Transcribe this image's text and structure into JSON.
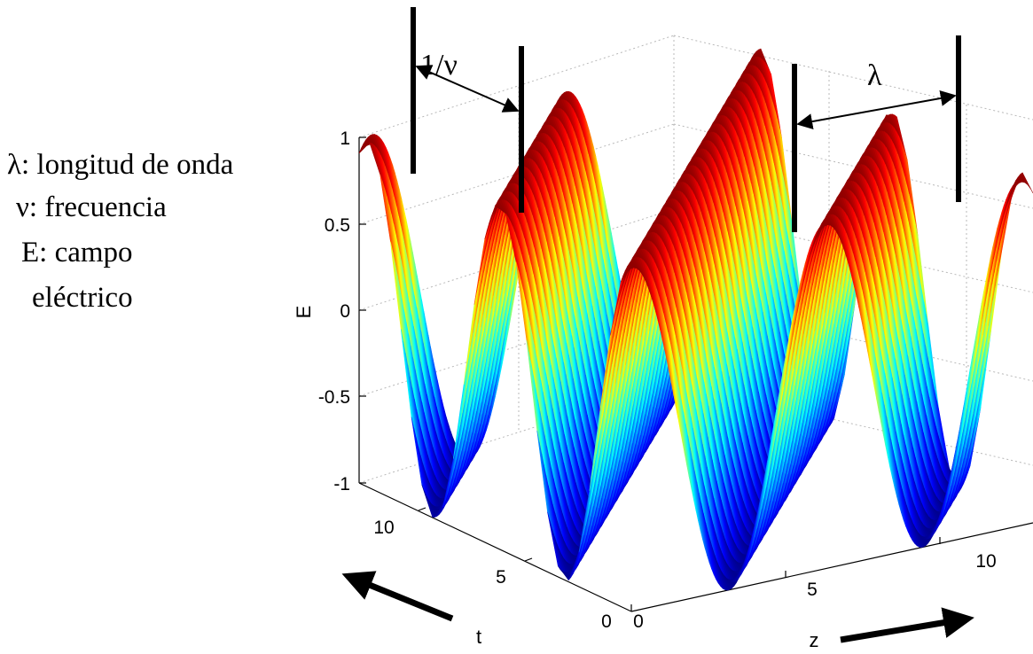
{
  "legend": {
    "lambda_line": "λ: longitud de onda",
    "nu_line": "ν: frecuencia",
    "e_line_1": "E: campo",
    "e_line_2": "eléctrico"
  },
  "dimensions": {
    "period_label": "1/ν",
    "wavelength_label": "λ"
  },
  "chart_data": {
    "type": "surface",
    "function": "E = cos(z - t)",
    "colormap": "jet",
    "zlabel": "E",
    "xlabel": "z",
    "ylabel": "t",
    "z_range": [
      0,
      13
    ],
    "t_range": [
      0,
      13
    ],
    "E_range": [
      -1,
      1
    ],
    "e_ticks": [
      "-1",
      "-0.5",
      "0",
      "0.5",
      "1"
    ],
    "t_ticks": [
      "0",
      "5",
      "10"
    ],
    "z_ticks": [
      "0",
      "5",
      "10"
    ],
    "grid": true
  }
}
